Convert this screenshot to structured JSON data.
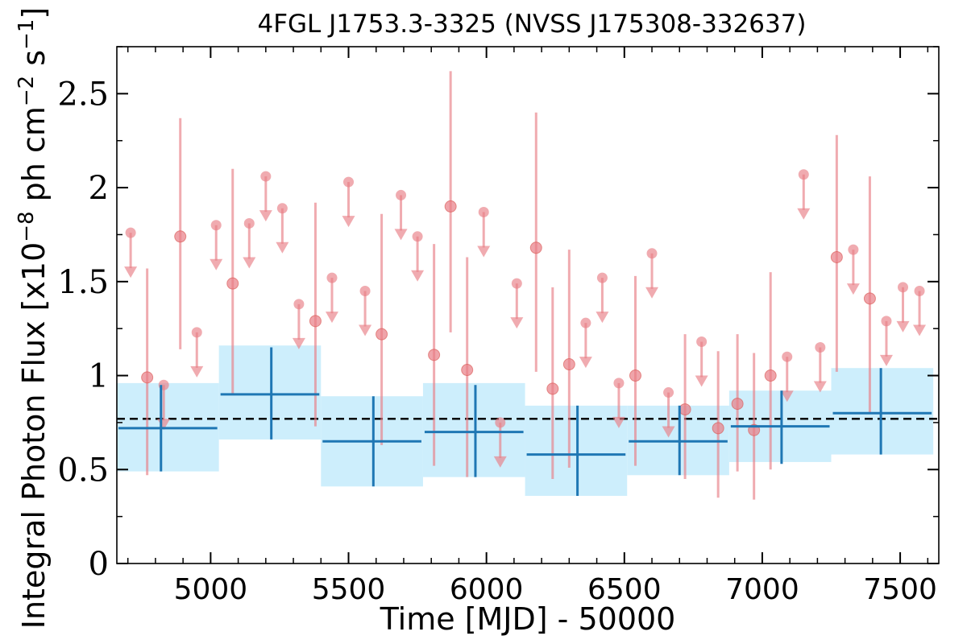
{
  "chart_data": {
    "type": "scatter",
    "title": "4FGL J1753.3-3325 (NVSS J175308-332637)",
    "xlabel": "Time [MJD] - 50000",
    "ylabel": "Integral Photon Flux [x10^-8 ph cm^-2 s^-1]",
    "ylabel_parts": {
      "pre": "Integral Photon Flux [x10",
      "exp1": "−8",
      "mid": " ph cm",
      "exp2": "−2",
      "mid2": " s",
      "exp3": "−1",
      "post": "]"
    },
    "xlim": [
      4660,
      7640
    ],
    "ylim": [
      0,
      2.75
    ],
    "xticks": [
      {
        "value": 5000,
        "label": "5000"
      },
      {
        "value": 5500,
        "label": "5500"
      },
      {
        "value": 6000,
        "label": "6000"
      },
      {
        "value": 6500,
        "label": "6500"
      },
      {
        "value": 7000,
        "label": "7000"
      },
      {
        "value": 7500,
        "label": "7500"
      }
    ],
    "yticks": [
      {
        "value": 0,
        "label": "0"
      },
      {
        "value": 0.5,
        "label": "0.5"
      },
      {
        "value": 1,
        "label": "1"
      },
      {
        "value": 1.5,
        "label": "1.5"
      },
      {
        "value": 2,
        "label": "2"
      },
      {
        "value": 2.5,
        "label": "2.5"
      }
    ],
    "mean_flux": 0.77,
    "colors": {
      "short_bins": "#e87e86",
      "long_bins": "#1f77b4",
      "long_band": "#cdeefc",
      "mean_line": "#000000"
    },
    "long_bins": [
      {
        "x0": 4660,
        "x1": 5030,
        "center": 4820,
        "y": 0.72,
        "ylo": 0.49,
        "yhi": 0.95,
        "band_lo": 0.49,
        "band_hi": 0.96
      },
      {
        "x0": 5030,
        "x1": 5400,
        "center": 5220,
        "y": 0.9,
        "ylo": 0.66,
        "yhi": 1.15,
        "band_lo": 0.66,
        "band_hi": 1.16
      },
      {
        "x0": 5400,
        "x1": 5770,
        "center": 5590,
        "y": 0.65,
        "ylo": 0.41,
        "yhi": 0.89,
        "band_lo": 0.41,
        "band_hi": 0.89
      },
      {
        "x0": 5770,
        "x1": 6140,
        "center": 5960,
        "y": 0.7,
        "ylo": 0.46,
        "yhi": 0.95,
        "band_lo": 0.46,
        "band_hi": 0.96
      },
      {
        "x0": 6140,
        "x1": 6510,
        "center": 6330,
        "y": 0.58,
        "ylo": 0.36,
        "yhi": 0.84,
        "band_lo": 0.36,
        "band_hi": 0.84
      },
      {
        "x0": 6510,
        "x1": 6880,
        "center": 6700,
        "y": 0.65,
        "ylo": 0.47,
        "yhi": 0.84,
        "band_lo": 0.47,
        "band_hi": 0.84
      },
      {
        "x0": 6880,
        "x1": 7250,
        "center": 7070,
        "y": 0.73,
        "ylo": 0.53,
        "yhi": 0.92,
        "band_lo": 0.54,
        "band_hi": 0.92
      },
      {
        "x0": 7250,
        "x1": 7620,
        "center": 7430,
        "y": 0.8,
        "ylo": 0.58,
        "yhi": 1.04,
        "band_lo": 0.58,
        "band_hi": 1.04
      }
    ],
    "short_bins": [
      {
        "x": 4710,
        "y": 1.76,
        "ul": true
      },
      {
        "x": 4770,
        "y": 0.99,
        "ylo": 0.47,
        "yhi": 1.57
      },
      {
        "x": 4830,
        "y": 0.95,
        "ul": true
      },
      {
        "x": 4890,
        "y": 1.74,
        "ylo": 1.14,
        "yhi": 2.37
      },
      {
        "x": 4950,
        "y": 1.23,
        "ul": true
      },
      {
        "x": 5020,
        "y": 1.8,
        "ul": true
      },
      {
        "x": 5080,
        "y": 1.49,
        "ylo": 0.9,
        "yhi": 2.1
      },
      {
        "x": 5140,
        "y": 1.81,
        "ul": true
      },
      {
        "x": 5200,
        "y": 2.06,
        "ul": true
      },
      {
        "x": 5260,
        "y": 1.89,
        "ul": true
      },
      {
        "x": 5320,
        "y": 1.38,
        "ul": true
      },
      {
        "x": 5380,
        "y": 1.29,
        "ylo": 0.73,
        "yhi": 1.92
      },
      {
        "x": 5440,
        "y": 1.52,
        "ul": true
      },
      {
        "x": 5500,
        "y": 2.03,
        "ul": true
      },
      {
        "x": 5560,
        "y": 1.45,
        "ul": true
      },
      {
        "x": 5620,
        "y": 1.22,
        "ylo": 0.63,
        "yhi": 1.86
      },
      {
        "x": 5690,
        "y": 1.96,
        "ul": true
      },
      {
        "x": 5750,
        "y": 1.74,
        "ul": true
      },
      {
        "x": 5810,
        "y": 1.11,
        "ylo": 0.52,
        "yhi": 1.7
      },
      {
        "x": 5870,
        "y": 1.9,
        "ylo": 1.23,
        "yhi": 2.62
      },
      {
        "x": 5930,
        "y": 1.03,
        "ylo": 0.46,
        "yhi": 1.63
      },
      {
        "x": 5990,
        "y": 1.87,
        "ul": true
      },
      {
        "x": 6050,
        "y": 0.75,
        "ul": true
      },
      {
        "x": 6110,
        "y": 1.49,
        "ul": true
      },
      {
        "x": 6180,
        "y": 1.68,
        "ylo": 1.02,
        "yhi": 2.4
      },
      {
        "x": 6240,
        "y": 0.93,
        "ylo": 0.45,
        "yhi": 1.47
      },
      {
        "x": 6300,
        "y": 1.06,
        "ylo": 0.51,
        "yhi": 1.67
      },
      {
        "x": 6360,
        "y": 1.28,
        "ul": true
      },
      {
        "x": 6420,
        "y": 1.52,
        "ul": true
      },
      {
        "x": 6480,
        "y": 0.96,
        "ul": true
      },
      {
        "x": 6540,
        "y": 1.0,
        "ylo": 0.52,
        "yhi": 1.53
      },
      {
        "x": 6600,
        "y": 1.65,
        "ul": true
      },
      {
        "x": 6660,
        "y": 0.91,
        "ul": true
      },
      {
        "x": 6720,
        "y": 0.82,
        "ylo": 0.45,
        "yhi": 1.22
      },
      {
        "x": 6780,
        "y": 1.18,
        "ul": true
      },
      {
        "x": 6840,
        "y": 0.72,
        "ylo": 0.35,
        "yhi": 1.13
      },
      {
        "x": 6910,
        "y": 0.85,
        "ylo": 0.49,
        "yhi": 1.22
      },
      {
        "x": 6970,
        "y": 0.71,
        "ylo": 0.34,
        "yhi": 1.12
      },
      {
        "x": 7030,
        "y": 1.0,
        "ylo": 0.5,
        "yhi": 1.55
      },
      {
        "x": 7090,
        "y": 1.1,
        "ul": true
      },
      {
        "x": 7150,
        "y": 2.07,
        "ul": true
      },
      {
        "x": 7210,
        "y": 1.15,
        "ul": true
      },
      {
        "x": 7270,
        "y": 1.63,
        "ylo": 1.02,
        "yhi": 2.28
      },
      {
        "x": 7330,
        "y": 1.67,
        "ul": true
      },
      {
        "x": 7390,
        "y": 1.41,
        "ylo": 0.8,
        "yhi": 2.06
      },
      {
        "x": 7450,
        "y": 1.29,
        "ul": true
      },
      {
        "x": 7510,
        "y": 1.47,
        "ul": true
      },
      {
        "x": 7570,
        "y": 1.45,
        "ul": true
      }
    ]
  }
}
